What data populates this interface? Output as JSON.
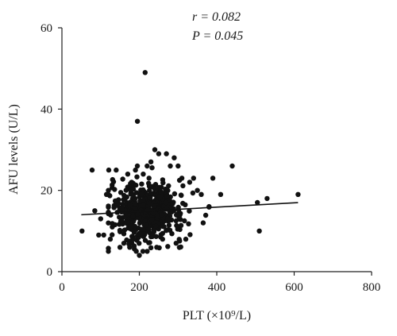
{
  "chart_data": {
    "type": "scatter",
    "title": "",
    "xlabel": "PLT (×10⁹/L)",
    "ylabel": "AFU levels (U/L)",
    "xlim": [
      0,
      800
    ],
    "ylim": [
      0,
      60
    ],
    "xticks": [
      "0",
      "200",
      "400",
      "600",
      "800"
    ],
    "yticks": [
      "0",
      "20",
      "40",
      "60"
    ],
    "grid": false,
    "legend": "none",
    "annotations": {
      "r": "r = 0.082",
      "p": "P = 0.045"
    },
    "trendline": {
      "x": [
        50,
        610
      ],
      "y": [
        14.0,
        17.0
      ]
    },
    "point_color": "#111111",
    "outliers": {
      "x": [
        52,
        78,
        85,
        95,
        100,
        108,
        115,
        120,
        125,
        130,
        140,
        150,
        160,
        170,
        175,
        180,
        185,
        190,
        195,
        200,
        210,
        215,
        220,
        225,
        230,
        235,
        240,
        245,
        250,
        260,
        270,
        280,
        290,
        295,
        300,
        310,
        320,
        330,
        340,
        350,
        360,
        365,
        380,
        390,
        410,
        440,
        505,
        510,
        530,
        610
      ],
      "y": [
        10,
        25,
        15,
        9,
        13,
        9,
        19,
        20,
        8,
        11,
        25,
        6,
        7,
        24,
        6,
        22,
        8,
        25,
        37,
        4,
        24,
        49,
        26,
        23,
        27,
        9,
        30,
        6,
        29,
        8,
        29,
        26,
        28,
        7,
        26,
        23,
        8,
        22,
        23,
        20,
        19,
        12,
        16,
        23,
        19,
        26,
        17,
        10,
        18,
        19
      ]
    },
    "cluster": {
      "n": 520,
      "center_x": 220,
      "center_y": 14.5,
      "spread_x": 48,
      "spread_y": 3.6,
      "seed": 7
    }
  }
}
